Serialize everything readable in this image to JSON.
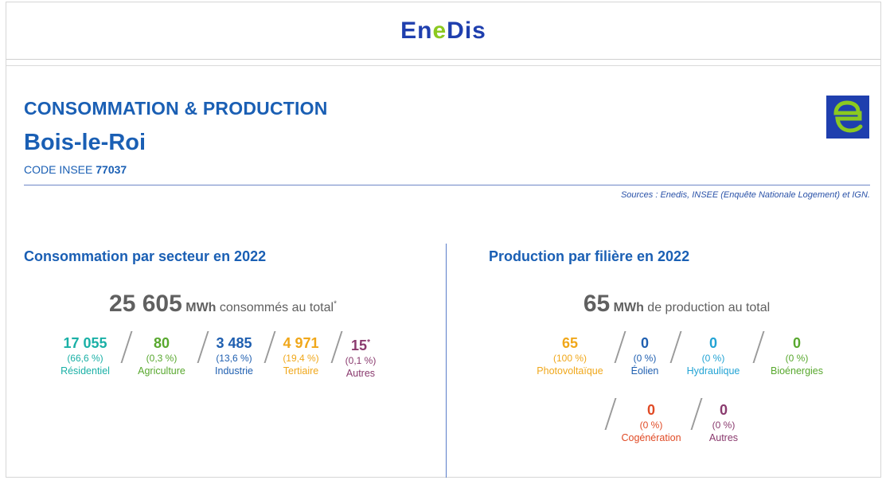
{
  "brand": {
    "logo_prefix": "En",
    "logo_mid": "e",
    "logo_suffix": "Dis"
  },
  "header": {
    "title": "CONSOMMATION & PRODUCTION",
    "city": "Bois-le-Roi",
    "insee_label": "CODE INSEE",
    "insee_code": "77037",
    "sources": "Sources : Enedis, INSEE (Enquête Nationale Logement) et IGN."
  },
  "colors": {
    "brand_blue": "#1a5fb4",
    "residentiel": "#1ab0a6",
    "agriculture": "#58a82e",
    "industrie": "#1f5fb0",
    "tertiaire": "#f0a71a",
    "autres": "#8a3a6e",
    "photovoltaique": "#f0a71a",
    "eolien": "#1f5fb0",
    "hydraulique": "#22a3d4",
    "bioenergies": "#58a82e",
    "cogeneration": "#e04a25"
  },
  "consommation": {
    "title": "Consommation par secteur en 2022",
    "total_value": "25 605",
    "total_unit": "MWh",
    "total_text": "consommés au total",
    "total_mark": "*",
    "items": [
      {
        "value": "17 055",
        "mark": "",
        "pct": "(66,6 %)",
        "label": "Résidentiel"
      },
      {
        "value": "80",
        "mark": "",
        "pct": "(0,3 %)",
        "label": "Agriculture"
      },
      {
        "value": "3 485",
        "mark": "",
        "pct": "(13,6 %)",
        "label": "Industrie"
      },
      {
        "value": "4 971",
        "mark": "",
        "pct": "(19,4 %)",
        "label": "Tertiaire"
      },
      {
        "value": "15",
        "mark": "*",
        "pct": "(0,1 %)",
        "label": "Autres"
      }
    ]
  },
  "production": {
    "title": "Production par filière en 2022",
    "total_value": "65",
    "total_unit": "MWh",
    "total_text": "de production au total",
    "items": [
      {
        "value": "65",
        "pct": "(100 %)",
        "label": "Photovoltaïque"
      },
      {
        "value": "0",
        "pct": "(0 %)",
        "label": "Éolien"
      },
      {
        "value": "0",
        "pct": "(0 %)",
        "label": "Hydraulique"
      },
      {
        "value": "0",
        "pct": "(0 %)",
        "label": "Bioénergies"
      },
      {
        "value": "0",
        "pct": "(0 %)",
        "label": "Cogénération"
      },
      {
        "value": "0",
        "pct": "(0 %)",
        "label": "Autres"
      }
    ]
  }
}
